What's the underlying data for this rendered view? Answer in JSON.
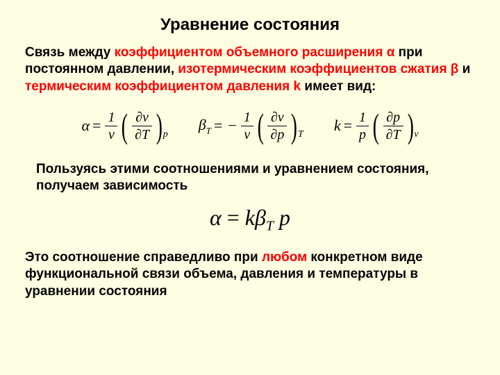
{
  "title": "Уравнение состояния",
  "p1": {
    "a": "Связь между ",
    "b": "коэффициентом объемного расширения α",
    "c": " при постоянном давлении, ",
    "d": "изотермическим коэффициентов сжатия β",
    "e": " и ",
    "f": "термическим коэффициентом давления k",
    "g": " имеет вид:"
  },
  "eq1": {
    "lhs": "α",
    "eq": "=",
    "fnum": "1",
    "fden": "v",
    "dnum_a": "∂",
    "dnum_b": "v",
    "dden_a": "∂",
    "dden_b": "T",
    "sub": "p"
  },
  "eq2": {
    "lhs_a": "β",
    "lhs_sub": "T",
    "eq": "=",
    "neg": "−",
    "fnum": "1",
    "fden": "v",
    "dnum_a": "∂",
    "dnum_b": "v",
    "dden_a": "∂",
    "dden_b": "p",
    "sub": "T"
  },
  "eq3": {
    "lhs": "k",
    "eq": "=",
    "fnum": "1",
    "fden": "p",
    "dnum_a": "∂",
    "dnum_b": "p",
    "dden_a": "∂",
    "dden_b": "T",
    "sub": "v"
  },
  "p2": "Пользуясь этими соотношениями и уравнением состояния, получаем зависимость",
  "bigeq": {
    "a": "α",
    "eq": " = ",
    "k": "k",
    "b": "β",
    "bsub": "T",
    "sp": " ",
    "p": "p"
  },
  "p3": {
    "a": "Это соотношение справедливо при ",
    "b": "любом",
    "c": " конкретном виде функциональной связи объема, давления и температуры в уравнении состояния"
  },
  "colors": {
    "accent": "#ff0000",
    "bg": "#feffe2",
    "text": "#000000"
  }
}
